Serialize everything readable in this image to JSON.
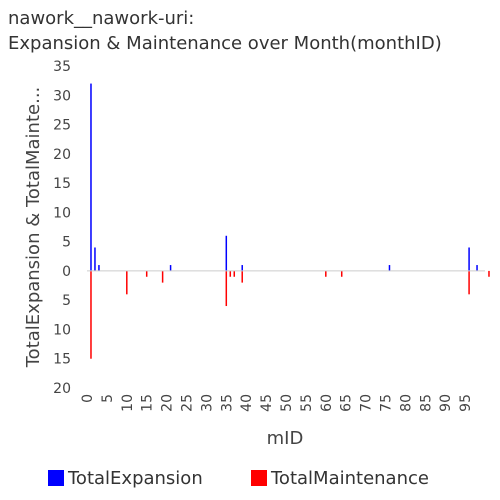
{
  "chart_data": {
    "type": "bar",
    "title_line1": "nawork__nawork-uri:",
    "title_line2": "Expansion & Maintenance over Month(monthID)",
    "xlabel": "mID",
    "ylabel": "TotalExpansion & TotalMainte...",
    "xlim": [
      0,
      100
    ],
    "ylim": [
      -20,
      35
    ],
    "x_ticks": [
      0,
      5,
      10,
      15,
      20,
      25,
      30,
      35,
      40,
      45,
      50,
      55,
      60,
      65,
      70,
      75,
      80,
      85,
      90,
      95
    ],
    "y_tick_values": [
      35,
      30,
      25,
      20,
      15,
      10,
      5,
      0,
      -5,
      -10,
      -15,
      -20
    ],
    "y_tick_labels": [
      "35",
      "30",
      "25",
      "20",
      "15",
      "10",
      "5",
      "0",
      "5",
      "10",
      "15",
      "20"
    ],
    "grid": false,
    "legend_position": "bottom",
    "series": [
      {
        "name": "TotalExpansion",
        "color": "#0000ff",
        "points": [
          {
            "x": 1,
            "y": 32
          },
          {
            "x": 2,
            "y": 4
          },
          {
            "x": 3,
            "y": 1
          },
          {
            "x": 21,
            "y": 1
          },
          {
            "x": 35,
            "y": 6
          },
          {
            "x": 39,
            "y": 1
          },
          {
            "x": 76,
            "y": 1
          },
          {
            "x": 96,
            "y": 4
          },
          {
            "x": 98,
            "y": 1
          }
        ]
      },
      {
        "name": "TotalMaintenance",
        "color": "#ff0000",
        "points": [
          {
            "x": 1,
            "y": -15
          },
          {
            "x": 10,
            "y": -4
          },
          {
            "x": 15,
            "y": -1
          },
          {
            "x": 19,
            "y": -2
          },
          {
            "x": 35,
            "y": -6
          },
          {
            "x": 36,
            "y": -1
          },
          {
            "x": 37,
            "y": -1
          },
          {
            "x": 39,
            "y": -2
          },
          {
            "x": 60,
            "y": -1
          },
          {
            "x": 64,
            "y": -1
          },
          {
            "x": 96,
            "y": -4
          },
          {
            "x": 101,
            "y": -1
          }
        ]
      }
    ]
  }
}
